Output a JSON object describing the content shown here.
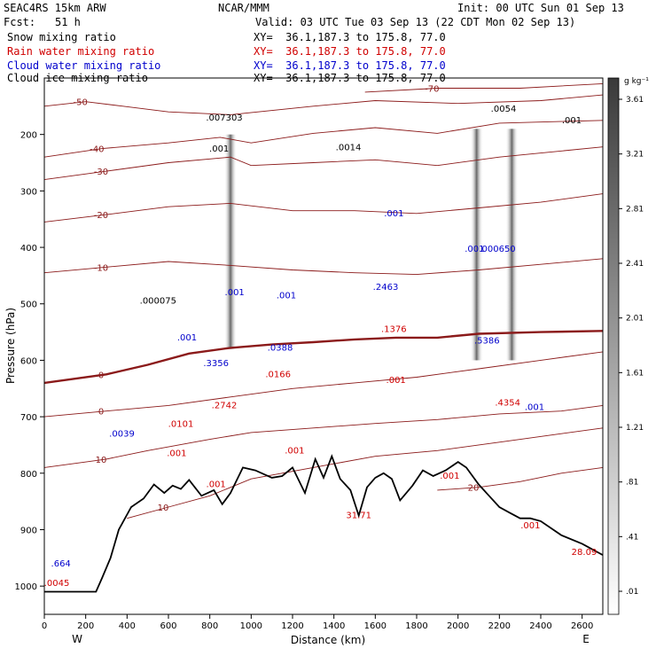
{
  "header": {
    "model": "SEAC4RS 15km ARW",
    "org": "NCAR/MMM",
    "init": "Init: 00 UTC Sun 01 Sep 13",
    "fcst_label": "Fcst:",
    "fcst_value": "51 h",
    "valid": "Valid: 03 UTC Tue 03 Sep 13 (22 CDT Mon 02 Sep 13)"
  },
  "fields": [
    {
      "name": "Snow mixing ratio",
      "xy": "XY=  36.1,187.3 to 175.8, 77.0",
      "color": "#000000"
    },
    {
      "name": "Rain water mixing ratio",
      "xy": "XY=  36.1,187.3 to 175.8, 77.0",
      "color": "#d00000"
    },
    {
      "name": "Cloud water mixing ratio",
      "xy": "XY=  36.1,187.3 to 175.8, 77.0",
      "color": "#0000cc"
    },
    {
      "name": "Cloud ice mixing ratio",
      "xy": "XY=  36.1,187.3 to 175.8, 77.0",
      "color": "#000000"
    }
  ],
  "chart_data": {
    "type": "cross-section",
    "xlabel": "Distance (km)",
    "ylabel": "Pressure (hPa)",
    "xlim": [
      0,
      2700
    ],
    "ylim": [
      1050,
      100
    ],
    "x_ticks": [
      0,
      200,
      400,
      600,
      800,
      1000,
      1200,
      1400,
      1600,
      1800,
      2000,
      2200,
      2400,
      2600
    ],
    "y_ticks": [
      200,
      300,
      400,
      500,
      600,
      700,
      800,
      900,
      1000
    ],
    "x_end_labels": [
      "W",
      "E"
    ],
    "colorbar": {
      "unit": "g kg⁻¹",
      "ticks": [
        ".01",
        ".41",
        ".81",
        "1.21",
        "1.61",
        "2.01",
        "2.41",
        "2.81",
        "3.21",
        "3.61"
      ]
    },
    "terrain": [
      [
        0,
        1010
      ],
      [
        250,
        1010
      ],
      [
        280,
        985
      ],
      [
        320,
        950
      ],
      [
        360,
        900
      ],
      [
        420,
        860
      ],
      [
        480,
        845
      ],
      [
        530,
        820
      ],
      [
        580,
        835
      ],
      [
        620,
        822
      ],
      [
        660,
        828
      ],
      [
        700,
        812
      ],
      [
        760,
        840
      ],
      [
        820,
        830
      ],
      [
        860,
        855
      ],
      [
        900,
        835
      ],
      [
        960,
        790
      ],
      [
        1020,
        795
      ],
      [
        1100,
        808
      ],
      [
        1150,
        805
      ],
      [
        1200,
        790
      ],
      [
        1260,
        835
      ],
      [
        1310,
        775
      ],
      [
        1350,
        808
      ],
      [
        1390,
        770
      ],
      [
        1430,
        810
      ],
      [
        1480,
        830
      ],
      [
        1520,
        875
      ],
      [
        1560,
        825
      ],
      [
        1600,
        808
      ],
      [
        1640,
        800
      ],
      [
        1680,
        810
      ],
      [
        1720,
        848
      ],
      [
        1780,
        822
      ],
      [
        1830,
        795
      ],
      [
        1880,
        805
      ],
      [
        1940,
        795
      ],
      [
        2000,
        780
      ],
      [
        2040,
        790
      ],
      [
        2100,
        820
      ],
      [
        2150,
        840
      ],
      [
        2200,
        860
      ],
      [
        2250,
        870
      ],
      [
        2300,
        880
      ],
      [
        2350,
        880
      ],
      [
        2400,
        885
      ],
      [
        2500,
        910
      ],
      [
        2600,
        925
      ],
      [
        2700,
        945
      ]
    ],
    "temperature_contours": [
      {
        "label": "-70",
        "points": [
          [
            1550,
            125
          ],
          [
            1900,
            118
          ],
          [
            2300,
            118
          ],
          [
            2700,
            110
          ]
        ]
      },
      {
        "label": "-50",
        "points": [
          [
            0,
            150
          ],
          [
            200,
            142
          ],
          [
            380,
            150
          ],
          [
            600,
            160
          ],
          [
            900,
            165
          ],
          [
            1300,
            150
          ],
          [
            1600,
            140
          ],
          [
            2000,
            145
          ],
          [
            2400,
            140
          ],
          [
            2700,
            130
          ]
        ]
      },
      {
        "label": "-40",
        "points": [
          [
            0,
            240
          ],
          [
            280,
            225
          ],
          [
            600,
            215
          ],
          [
            850,
            205
          ],
          [
            1000,
            215
          ],
          [
            1300,
            198
          ],
          [
            1600,
            188
          ],
          [
            1900,
            198
          ],
          [
            2200,
            180
          ],
          [
            2700,
            175
          ]
        ]
      },
      {
        "label": "-30",
        "points": [
          [
            0,
            280
          ],
          [
            300,
            265
          ],
          [
            600,
            250
          ],
          [
            900,
            240
          ],
          [
            1000,
            255
          ],
          [
            1300,
            250
          ],
          [
            1600,
            245
          ],
          [
            1900,
            255
          ],
          [
            2200,
            240
          ],
          [
            2700,
            222
          ]
        ]
      },
      {
        "label": "-20",
        "points": [
          [
            0,
            355
          ],
          [
            300,
            342
          ],
          [
            600,
            328
          ],
          [
            900,
            322
          ],
          [
            1200,
            335
          ],
          [
            1500,
            335
          ],
          [
            1800,
            340
          ],
          [
            2100,
            330
          ],
          [
            2400,
            320
          ],
          [
            2700,
            305
          ]
        ]
      },
      {
        "label": "-10",
        "points": [
          [
            0,
            445
          ],
          [
            300,
            435
          ],
          [
            600,
            425
          ],
          [
            900,
            432
          ],
          [
            1200,
            440
          ],
          [
            1500,
            445
          ],
          [
            1800,
            448
          ],
          [
            2100,
            440
          ],
          [
            2400,
            430
          ],
          [
            2700,
            420
          ]
        ]
      },
      {
        "label": "0",
        "points": [
          [
            0,
            640
          ],
          [
            300,
            625
          ],
          [
            500,
            608
          ],
          [
            700,
            588
          ],
          [
            900,
            578
          ],
          [
            1100,
            572
          ],
          [
            1300,
            568
          ],
          [
            1500,
            563
          ],
          [
            1700,
            560
          ],
          [
            1900,
            560
          ],
          [
            2100,
            553
          ],
          [
            2400,
            550
          ],
          [
            2700,
            548
          ]
        ]
      },
      {
        "label": "0",
        "points": [
          [
            0,
            700
          ],
          [
            300,
            690
          ],
          [
            600,
            680
          ],
          [
            900,
            665
          ],
          [
            1200,
            650
          ],
          [
            1500,
            640
          ],
          [
            1800,
            630
          ],
          [
            2100,
            615
          ],
          [
            2400,
            600
          ],
          [
            2700,
            585
          ]
        ]
      },
      {
        "label": "10",
        "points": [
          [
            0,
            790
          ],
          [
            300,
            775
          ],
          [
            500,
            760
          ],
          [
            800,
            740
          ],
          [
            1000,
            728
          ],
          [
            1300,
            720
          ],
          [
            1600,
            712
          ],
          [
            1900,
            705
          ],
          [
            2200,
            695
          ],
          [
            2500,
            690
          ],
          [
            2700,
            680
          ]
        ]
      },
      {
        "label": "10",
        "points": [
          [
            400,
            880
          ],
          [
            600,
            860
          ],
          [
            800,
            840
          ],
          [
            1000,
            810
          ],
          [
            1300,
            790
          ],
          [
            1600,
            770
          ],
          [
            1900,
            760
          ],
          [
            2200,
            745
          ],
          [
            2500,
            730
          ],
          [
            2700,
            720
          ]
        ]
      },
      {
        "label": "20",
        "points": [
          [
            1900,
            830
          ],
          [
            2100,
            825
          ],
          [
            2300,
            815
          ],
          [
            2500,
            800
          ],
          [
            2700,
            790
          ]
        ]
      }
    ],
    "snow_bands": [
      [
        900,
        200,
        580
      ],
      [
        2090,
        190,
        600
      ],
      [
        2260,
        190,
        600
      ]
    ],
    "markers": [
      {
        "x": 870,
        "p": 175,
        "text": ".007303",
        "color": "#000000"
      },
      {
        "x": 845,
        "p": 230,
        "text": ".001",
        "color": "#000000"
      },
      {
        "x": 1470,
        "p": 228,
        "text": ".0014",
        "color": "#000000"
      },
      {
        "x": 2220,
        "p": 160,
        "text": ".0054",
        "color": "#000000"
      },
      {
        "x": 2550,
        "p": 180,
        "text": ".001",
        "color": "#000000"
      },
      {
        "x": 550,
        "p": 500,
        "text": ".000075",
        "color": "#000000"
      },
      {
        "x": 920,
        "p": 485,
        "text": ".001",
        "color": "#0000cc"
      },
      {
        "x": 1170,
        "p": 490,
        "text": ".001",
        "color": "#0000cc"
      },
      {
        "x": 690,
        "p": 565,
        "text": ".001",
        "color": "#0000cc"
      },
      {
        "x": 830,
        "p": 610,
        "text": ".3356",
        "color": "#0000cc"
      },
      {
        "x": 1140,
        "p": 583,
        "text": ".0388",
        "color": "#0000cc"
      },
      {
        "x": 1690,
        "p": 345,
        "text": ".001",
        "color": "#0000cc"
      },
      {
        "x": 1650,
        "p": 475,
        "text": ".2463",
        "color": "#0000cc"
      },
      {
        "x": 2080,
        "p": 408,
        "text": ".001",
        "color": "#0000cc"
      },
      {
        "x": 2190,
        "p": 408,
        "text": ".000650",
        "color": "#0000cc"
      },
      {
        "x": 2140,
        "p": 570,
        "text": ".5386",
        "color": "#0000cc"
      },
      {
        "x": 2370,
        "p": 688,
        "text": ".001",
        "color": "#0000cc"
      },
      {
        "x": 375,
        "p": 735,
        "text": ".0039",
        "color": "#0000cc"
      },
      {
        "x": 660,
        "p": 718,
        "text": ".0101",
        "color": "#d00000"
      },
      {
        "x": 640,
        "p": 770,
        "text": ".001",
        "color": "#d00000"
      },
      {
        "x": 1130,
        "p": 630,
        "text": ".0166",
        "color": "#d00000"
      },
      {
        "x": 870,
        "p": 685,
        "text": ".2742",
        "color": "#d00000"
      },
      {
        "x": 830,
        "p": 825,
        "text": ".001",
        "color": "#d00000"
      },
      {
        "x": 1210,
        "p": 765,
        "text": ".001",
        "color": "#d00000"
      },
      {
        "x": 1690,
        "p": 550,
        "text": ".1376",
        "color": "#d00000"
      },
      {
        "x": 1700,
        "p": 640,
        "text": ".001",
        "color": "#d00000"
      },
      {
        "x": 1960,
        "p": 810,
        "text": ".001",
        "color": "#d00000"
      },
      {
        "x": 2240,
        "p": 680,
        "text": ".4354",
        "color": "#d00000"
      },
      {
        "x": 2350,
        "p": 898,
        "text": ".001",
        "color": "#d00000"
      },
      {
        "x": 1520,
        "p": 880,
        "text": "31.71",
        "color": "#d00000"
      },
      {
        "x": 2610,
        "p": 945,
        "text": "28.09",
        "color": "#d00000"
      },
      {
        "x": 80,
        "p": 965,
        "text": ".664",
        "color": "#0000cc"
      },
      {
        "x": 60,
        "p": 1000,
        "text": ".0045",
        "color": "#d00000"
      }
    ]
  }
}
